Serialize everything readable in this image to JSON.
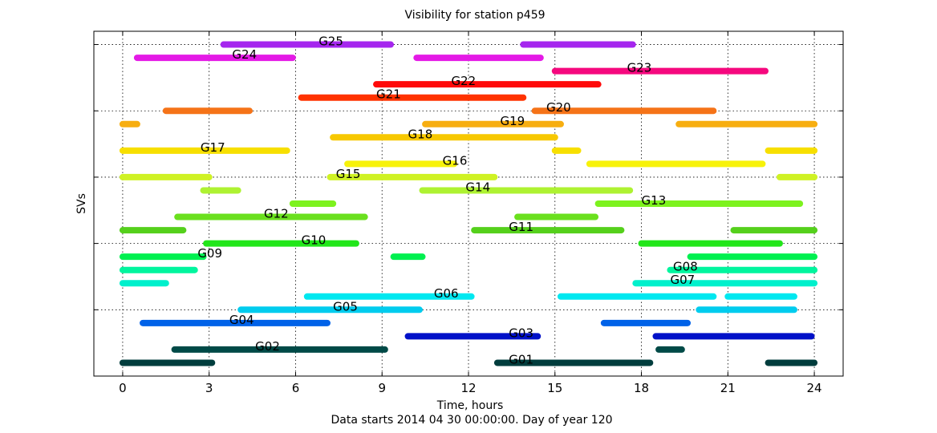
{
  "chart_data": {
    "type": "timeline",
    "title": "Visibility for station p459",
    "xlabel": "Time, hours",
    "xlabel_sub": "Data starts 2014 04 30 00:00:00.  Day of year 120",
    "ylabel": "SVs",
    "xlim": [
      -1,
      25
    ],
    "ylim": [
      0,
      26
    ],
    "x_ticks": [
      0,
      3,
      6,
      9,
      12,
      15,
      18,
      21,
      24
    ],
    "y_ticks": [
      0,
      5,
      10,
      15,
      20,
      25
    ],
    "grid": true,
    "series": [
      {
        "name": "G01",
        "y": 1,
        "color": "#003d3d",
        "label_x": 13.4,
        "intervals": [
          [
            0,
            3.1
          ],
          [
            13.0,
            18.3
          ],
          [
            22.4,
            24
          ]
        ]
      },
      {
        "name": "G02",
        "y": 2,
        "color": "#004a47",
        "label_x": 4.6,
        "intervals": [
          [
            1.8,
            9.1
          ],
          [
            18.6,
            19.4
          ]
        ]
      },
      {
        "name": "G03",
        "y": 3,
        "color": "#0011c8",
        "label_x": 13.4,
        "intervals": [
          [
            9.9,
            14.4
          ],
          [
            18.5,
            23.9
          ]
        ]
      },
      {
        "name": "G04",
        "y": 4,
        "color": "#0062e8",
        "label_x": 3.7,
        "intervals": [
          [
            0.7,
            7.1
          ],
          [
            16.7,
            19.6
          ]
        ]
      },
      {
        "name": "G05",
        "y": 5,
        "color": "#00ccee",
        "label_x": 7.3,
        "intervals": [
          [
            4.1,
            10.3
          ],
          [
            20.0,
            23.3
          ]
        ]
      },
      {
        "name": "G06",
        "y": 6,
        "color": "#00e8f0",
        "label_x": 10.8,
        "intervals": [
          [
            6.4,
            12.1
          ],
          [
            15.2,
            20.5
          ],
          [
            21.0,
            23.3
          ]
        ]
      },
      {
        "name": "G07",
        "y": 7,
        "color": "#00f0cc",
        "label_x": 19.0,
        "intervals": [
          [
            0,
            1.5
          ],
          [
            17.8,
            24
          ]
        ]
      },
      {
        "name": "G08",
        "y": 8,
        "color": "#00f59e",
        "label_x": 19.1,
        "intervals": [
          [
            0,
            2.5
          ],
          [
            19.0,
            24
          ]
        ]
      },
      {
        "name": "G09",
        "y": 9,
        "color": "#00f050",
        "label_x": 2.6,
        "intervals": [
          [
            0,
            2.8
          ],
          [
            9.4,
            10.4
          ],
          [
            19.7,
            24
          ]
        ]
      },
      {
        "name": "G10",
        "y": 10,
        "color": "#22e61a",
        "label_x": 6.2,
        "intervals": [
          [
            2.9,
            8.1
          ],
          [
            18.0,
            22.8
          ]
        ]
      },
      {
        "name": "G11",
        "y": 11,
        "color": "#55d01c",
        "label_x": 13.4,
        "intervals": [
          [
            0,
            2.1
          ],
          [
            12.2,
            17.3
          ],
          [
            21.2,
            24
          ]
        ]
      },
      {
        "name": "G12",
        "y": 12,
        "color": "#6ae01e",
        "label_x": 4.9,
        "intervals": [
          [
            1.9,
            8.4
          ],
          [
            13.7,
            16.4
          ]
        ]
      },
      {
        "name": "G13",
        "y": 13,
        "color": "#7df21e",
        "label_x": 18.0,
        "intervals": [
          [
            5.9,
            7.3
          ],
          [
            16.5,
            23.5
          ]
        ]
      },
      {
        "name": "G14",
        "y": 14,
        "color": "#aef232",
        "label_x": 11.9,
        "intervals": [
          [
            2.8,
            4.0
          ],
          [
            10.4,
            17.6
          ]
        ]
      },
      {
        "name": "G15",
        "y": 15,
        "color": "#cff224",
        "label_x": 7.4,
        "intervals": [
          [
            0,
            3.0
          ],
          [
            7.2,
            12.9
          ],
          [
            22.8,
            24
          ]
        ]
      },
      {
        "name": "G16",
        "y": 16,
        "color": "#f7f20a",
        "label_x": 11.1,
        "intervals": [
          [
            7.8,
            11.5
          ],
          [
            16.2,
            22.2
          ]
        ]
      },
      {
        "name": "G17",
        "y": 17,
        "color": "#f7df00",
        "label_x": 2.7,
        "intervals": [
          [
            0,
            5.7
          ],
          [
            15.0,
            15.8
          ],
          [
            22.4,
            24
          ]
        ]
      },
      {
        "name": "G18",
        "y": 18,
        "color": "#f7c800",
        "label_x": 9.9,
        "intervals": [
          [
            7.3,
            15.0
          ]
        ]
      },
      {
        "name": "G19",
        "y": 19,
        "color": "#f7ae10",
        "label_x": 13.1,
        "intervals": [
          [
            0,
            0.5
          ],
          [
            10.5,
            15.2
          ],
          [
            19.3,
            24
          ]
        ]
      },
      {
        "name": "G20",
        "y": 20,
        "color": "#f57318",
        "label_x": 14.7,
        "intervals": [
          [
            1.5,
            4.4
          ],
          [
            14.3,
            20.5
          ]
        ]
      },
      {
        "name": "G21",
        "y": 21,
        "color": "#ff3300",
        "label_x": 8.8,
        "intervals": [
          [
            6.2,
            13.9
          ]
        ]
      },
      {
        "name": "G22",
        "y": 22,
        "color": "#ff0a0a",
        "label_x": 11.4,
        "intervals": [
          [
            8.8,
            16.5
          ]
        ]
      },
      {
        "name": "G23",
        "y": 23,
        "color": "#f5087e",
        "label_x": 17.5,
        "intervals": [
          [
            15.0,
            22.3
          ]
        ]
      },
      {
        "name": "G24",
        "y": 24,
        "color": "#e41ae6",
        "label_x": 3.8,
        "intervals": [
          [
            0.5,
            5.9
          ],
          [
            10.2,
            14.5
          ]
        ]
      },
      {
        "name": "G25",
        "y": 25,
        "color": "#a526ee",
        "label_x": 6.8,
        "intervals": [
          [
            3.5,
            9.3
          ],
          [
            13.9,
            17.7
          ]
        ]
      }
    ]
  }
}
